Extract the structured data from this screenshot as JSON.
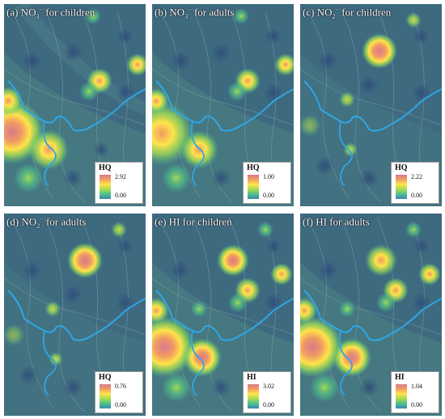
{
  "figure": {
    "panels": [
      {
        "id": "a",
        "label": "(a) NO",
        "sub": "3",
        "sup": "−",
        "rest": " for children",
        "legend_title": "HQ",
        "legend_max": "2.92",
        "legend_min": "0.00"
      },
      {
        "id": "b",
        "label": "(b) NO",
        "sub": "3",
        "sup": "−",
        "rest": " for adults",
        "legend_title": "HQ",
        "legend_max": "1.00",
        "legend_min": "0.00"
      },
      {
        "id": "c",
        "label": "(c) NO",
        "sub": "2",
        "sup": "−",
        "rest": " for children",
        "legend_title": "HQ",
        "legend_max": "2.22",
        "legend_min": "0.00"
      },
      {
        "id": "d",
        "label": "(d) NO",
        "sub": "2",
        "sup": "−",
        "rest": " for adults",
        "legend_title": "HQ",
        "legend_max": "0.76",
        "legend_min": "0.00"
      },
      {
        "id": "e",
        "label": "(e) HI for children",
        "sub": "",
        "sup": "",
        "rest": "",
        "legend_title": "HI",
        "legend_max": "3.02",
        "legend_min": "0.00"
      },
      {
        "id": "f",
        "label": "(f) HI for adults",
        "sub": "",
        "sup": "",
        "rest": "",
        "legend_title": "HI",
        "legend_max": "1.04",
        "legend_min": "0.00"
      }
    ]
  },
  "colors": {
    "background_low": "#3e6a80",
    "river": "#2fa6e6",
    "high": "#d77a8e",
    "mid_high": "#f09a62",
    "mid": "#ffe44a",
    "mid_low": "#9edb54",
    "low": "#4fc08d",
    "min": "#3b88b7"
  }
}
